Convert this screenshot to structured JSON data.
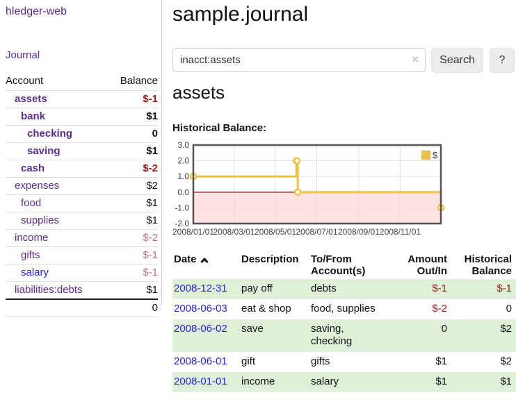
{
  "app": {
    "title": "hledger-web",
    "nav_journal": "Journal"
  },
  "sidebar": {
    "account_header": "Account",
    "balance_header": "Balance",
    "rows": [
      {
        "name": "assets",
        "balance": "$-1",
        "depth": 0,
        "bold": true,
        "neg": "strong",
        "link": "purple"
      },
      {
        "name": "bank",
        "balance": "$1",
        "depth": 1,
        "bold": true,
        "neg": "",
        "link": "purple"
      },
      {
        "name": "checking",
        "balance": "0",
        "depth": 2,
        "bold": true,
        "neg": "",
        "link": "purple"
      },
      {
        "name": "saving",
        "balance": "$1",
        "depth": 2,
        "bold": true,
        "neg": "",
        "link": "purple"
      },
      {
        "name": "cash",
        "balance": "$-2",
        "depth": 1,
        "bold": true,
        "neg": "strong",
        "link": "purple"
      },
      {
        "name": "expenses",
        "balance": "$2",
        "depth": 0,
        "bold": false,
        "neg": "",
        "link": "purple"
      },
      {
        "name": "food",
        "balance": "$1",
        "depth": 1,
        "bold": false,
        "neg": "",
        "link": "purple"
      },
      {
        "name": "supplies",
        "balance": "$1",
        "depth": 1,
        "bold": false,
        "neg": "",
        "link": "purple"
      },
      {
        "name": "income",
        "balance": "$-2",
        "depth": 0,
        "bold": false,
        "neg": "soft",
        "link": "purple"
      },
      {
        "name": "gifts",
        "balance": "$-1",
        "depth": 1,
        "bold": false,
        "neg": "soft",
        "link": "purple"
      },
      {
        "name": "salary",
        "balance": "$-1",
        "depth": 1,
        "bold": false,
        "neg": "soft",
        "link": "blue"
      },
      {
        "name": "liabilities:debts",
        "balance": "$1",
        "depth": 0,
        "bold": false,
        "neg": "",
        "link": "purple"
      }
    ],
    "total": "0"
  },
  "header": {
    "title": "sample.journal"
  },
  "search": {
    "value": "inacct:assets",
    "clear_icon": "×",
    "button_label": "Search",
    "help_label": "?"
  },
  "register": {
    "heading": "assets",
    "chart_label": "Historical Balance:"
  },
  "chart_data": {
    "type": "line",
    "title": "Historical Balance",
    "step": true,
    "series": [
      {
        "name": "$",
        "color": "#edc240",
        "points": [
          [
            "2008-01-01",
            1
          ],
          [
            "2008-06-01",
            2
          ],
          [
            "2008-06-02",
            2
          ],
          [
            "2008-06-03",
            0
          ],
          [
            "2008-12-31",
            -1
          ]
        ]
      }
    ],
    "x_ticks": [
      "2008/01/01",
      "2008/03/01",
      "2008/05/01",
      "2008/07/01",
      "2008/09/01",
      "2008/11/01"
    ],
    "y_ticks": [
      "3.0",
      "2.0",
      "1.0",
      "0.0",
      "-1.0",
      "-2.0"
    ],
    "xlim": [
      "2008-01-01",
      "2008-12-31"
    ],
    "ylim": [
      -2,
      3
    ],
    "grid": true,
    "legend_position": "top-right",
    "shade_negative_color": "#fcd9dc",
    "zero_line_color": "#8e1d1d",
    "border_color": "#545454",
    "grid_color": "#e0e0e0"
  },
  "table": {
    "headers": {
      "date": "Date",
      "description": "Description",
      "accounts": "To/From Account(s)",
      "amount": "Amount Out/In",
      "balance": "Historical Balance"
    },
    "rows": [
      {
        "date": "2008-12-31",
        "description": "pay off",
        "accounts": "debts",
        "amount": "$-1",
        "amount_neg": true,
        "balance": "$-1",
        "balance_neg": true
      },
      {
        "date": "2008-06-03",
        "description": "eat & shop",
        "accounts": "food, supplies",
        "amount": "$-2",
        "amount_neg": true,
        "balance": "0",
        "balance_neg": false
      },
      {
        "date": "2008-06-02",
        "description": "save",
        "accounts": "saving, checking",
        "amount": "0",
        "amount_neg": false,
        "balance": "$2",
        "balance_neg": false
      },
      {
        "date": "2008-06-01",
        "description": "gift",
        "accounts": "gifts",
        "amount": "$1",
        "amount_neg": false,
        "balance": "$2",
        "balance_neg": false
      },
      {
        "date": "2008-01-01",
        "description": "income",
        "accounts": "salary",
        "amount": "$1",
        "amount_neg": false,
        "balance": "$1",
        "balance_neg": false
      }
    ]
  }
}
